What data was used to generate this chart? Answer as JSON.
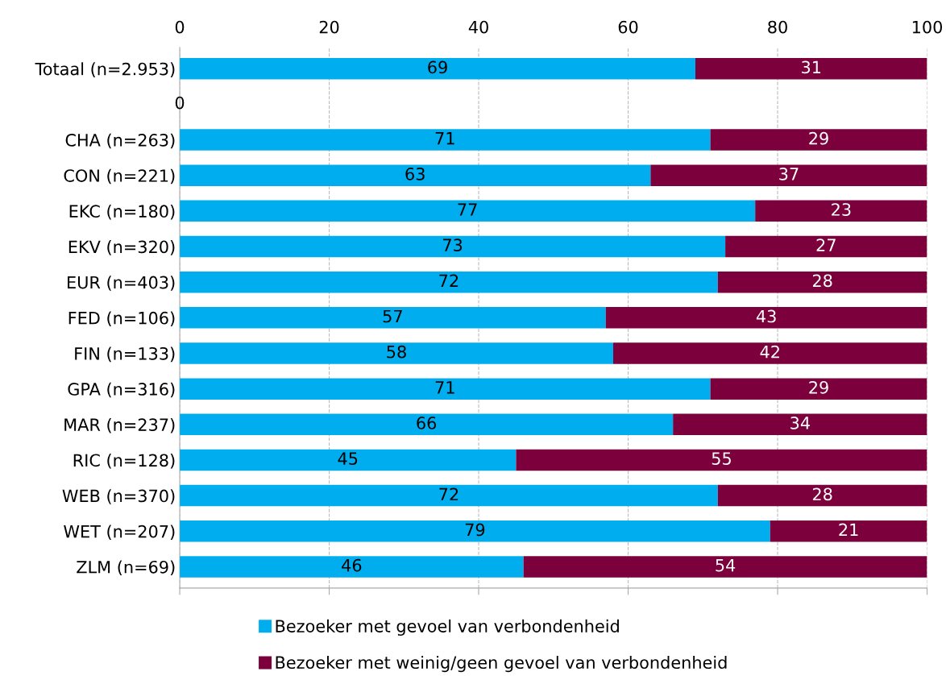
{
  "chart_data": {
    "type": "bar",
    "orientation": "horizontal",
    "stacked": true,
    "categories": [
      "Totaal (n=2.953)",
      null,
      "CHA (n=263)",
      "CON (n=221)",
      "EKC (n=180)",
      "EKV (n=320)",
      "EUR (n=403)",
      "FED (n=106)",
      "FIN (n=133)",
      "GPA (n=316)",
      "MAR (n=237)",
      "RIC (n=128)",
      "WEB (n=370)",
      "WET (n=207)",
      "ZLM (n=69)"
    ],
    "series": [
      {
        "name": "Bezoeker met gevoel van verbondenheid",
        "color": "#00aeef",
        "values": [
          69,
          0,
          71,
          63,
          77,
          73,
          72,
          57,
          58,
          71,
          66,
          45,
          72,
          79,
          46
        ],
        "value_labels": [
          "69",
          "0",
          "71",
          "63",
          "77",
          "73",
          "72",
          "57",
          "58",
          "71",
          "66",
          "45",
          "72",
          "79",
          "46"
        ]
      },
      {
        "name": "Bezoeker met weinig/geen gevoel van verbondenheid",
        "color": "#7b003c",
        "values": [
          31,
          0,
          29,
          37,
          23,
          27,
          28,
          43,
          42,
          29,
          34,
          55,
          28,
          21,
          54
        ],
        "value_labels": [
          "31",
          null,
          "29",
          "37",
          "23",
          "27",
          "28",
          "43",
          "42",
          "29",
          "34",
          "55",
          "28",
          "21",
          "54"
        ]
      }
    ],
    "xlim": [
      0,
      100
    ],
    "xticks": [
      0,
      20,
      40,
      60,
      80,
      100
    ],
    "grid": "x",
    "legend": "bottom"
  }
}
